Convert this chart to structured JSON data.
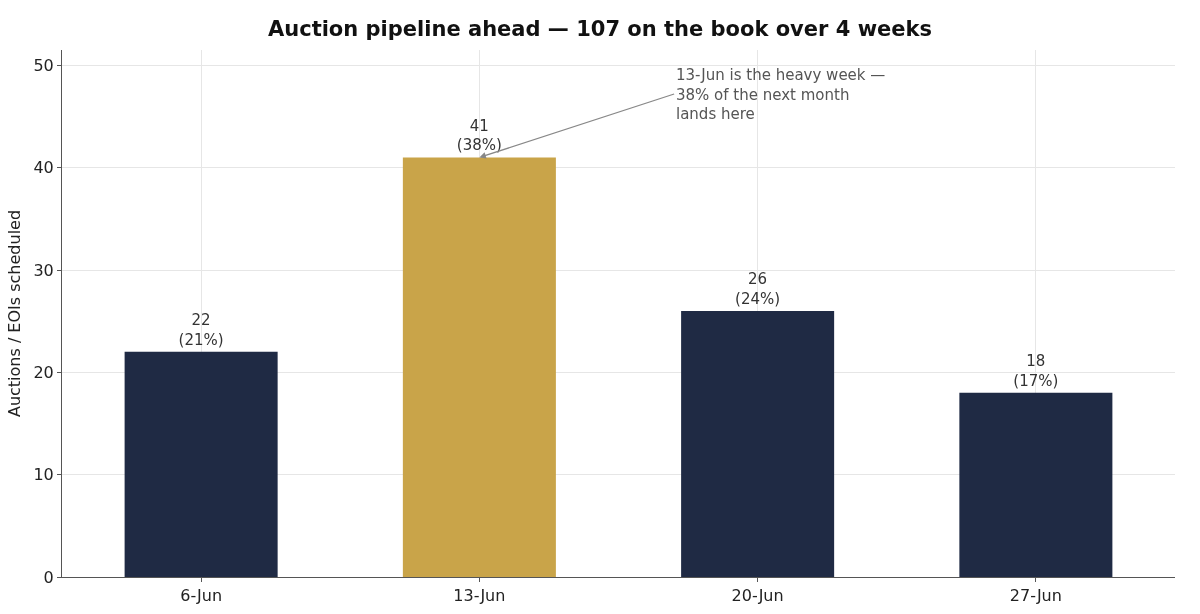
{
  "chart_data": {
    "type": "bar",
    "title": "Auction pipeline ahead — 107 on the book over 4 weeks",
    "ylabel": "Auctions / EOIs scheduled",
    "categories": [
      "6-Jun",
      "13-Jun",
      "20-Jun",
      "27-Jun"
    ],
    "values": [
      22,
      41,
      26,
      18
    ],
    "colors": [
      "#1f2a44",
      "#c9a449",
      "#1f2a44",
      "#1f2a44"
    ],
    "value_labels": [
      "22\n(21%)",
      "41\n(38%)",
      "26\n(24%)",
      "18\n(17%)"
    ],
    "annotations": [
      {
        "text": "13-Jun is the heavy week —\n38% of the next month\nlands here",
        "x": "13-Jun",
        "y": 41
      }
    ],
    "ylim": [
      0,
      51.5
    ],
    "yticks": [
      0,
      10,
      20,
      30,
      40,
      50
    ],
    "grid": true
  }
}
